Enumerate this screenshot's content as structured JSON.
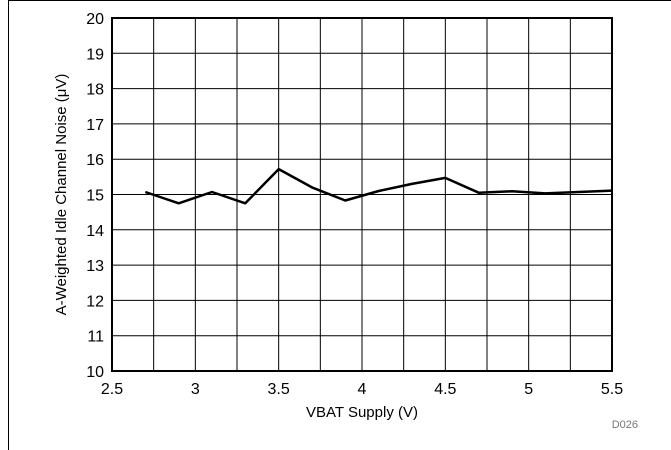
{
  "chart_data": {
    "type": "line",
    "title": "",
    "xlabel": "VBAT Supply (V)",
    "ylabel": "A-Weighted Idle Channel Noise (μV)",
    "xlim": [
      2.5,
      5.5
    ],
    "ylim": [
      10,
      20
    ],
    "x_ticks": [
      2.5,
      3,
      3.5,
      4,
      4.5,
      5,
      5.5
    ],
    "x_tick_labels": [
      "2.5",
      "3",
      "3.5",
      "4",
      "4.5",
      "5",
      "5.5"
    ],
    "y_ticks": [
      10,
      11,
      12,
      13,
      14,
      15,
      16,
      17,
      18,
      19,
      20
    ],
    "y_tick_labels": [
      "10",
      "11",
      "12",
      "13",
      "14",
      "15",
      "16",
      "17",
      "18",
      "19",
      "20"
    ],
    "x_minor_step": 0.25,
    "grid": true,
    "series": [
      {
        "x": [
          2.7,
          2.9,
          3.1,
          3.3,
          3.5,
          3.7,
          3.9,
          4.1,
          4.3,
          4.5,
          4.7,
          4.9,
          5.1,
          5.3,
          5.5
        ],
        "y": [
          15.07,
          14.75,
          15.07,
          14.75,
          15.72,
          15.2,
          14.83,
          15.1,
          15.3,
          15.47,
          15.05,
          15.09,
          15.03,
          15.07,
          15.11
        ],
        "color": "#000000"
      }
    ],
    "figure_code": "D026"
  }
}
